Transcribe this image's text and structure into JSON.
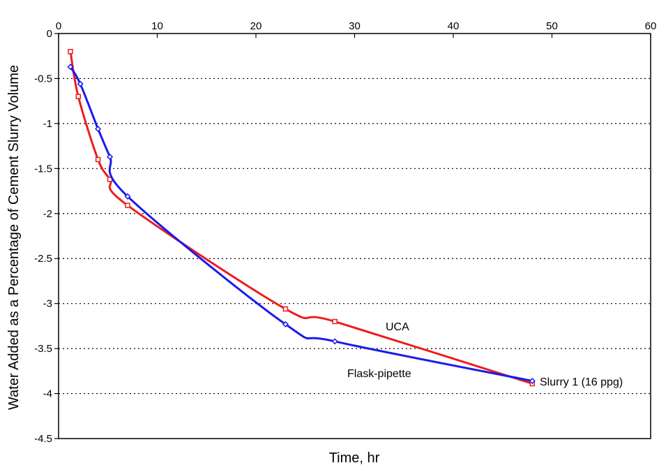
{
  "chart_data": {
    "type": "line",
    "xlabel": "Time, hr",
    "ylabel": "Water Added as a Percentage of Cement Slurry Volume",
    "xlim": [
      0,
      60
    ],
    "ylim": [
      -4.5,
      0
    ],
    "x_ticks": [
      "0",
      "10",
      "20",
      "30",
      "40",
      "50",
      "60"
    ],
    "y_ticks": [
      "0",
      "-0.5",
      "-1",
      "-1.5",
      "-2",
      "-2.5",
      "-3",
      "-3.5",
      "-4",
      "-4.5"
    ],
    "grid": "horizontal dotted",
    "series": [
      {
        "name": "UCA",
        "color": "#ee1c1c",
        "marker": "square",
        "points": [
          [
            1.2,
            -0.2
          ],
          [
            2,
            -0.7
          ],
          [
            4,
            -1.4
          ],
          [
            5.2,
            -1.62
          ],
          [
            7,
            -1.91
          ],
          [
            23,
            -3.06
          ],
          [
            28,
            -3.2
          ],
          [
            48,
            -3.89
          ]
        ]
      },
      {
        "name": "Flask-pipette",
        "color": "#1a1aee",
        "marker": "diamond",
        "points": [
          [
            1.2,
            -0.37
          ],
          [
            2.2,
            -0.56
          ],
          [
            4,
            -1.06
          ],
          [
            5.2,
            -1.37
          ],
          [
            7,
            -1.81
          ],
          [
            23,
            -3.23
          ],
          [
            28,
            -3.42
          ],
          [
            48,
            -3.86
          ]
        ]
      }
    ],
    "annotations": {
      "uca": "UCA",
      "flask": "Flask-pipette",
      "slurry": "Slurry 1 (16 ppg)"
    }
  }
}
